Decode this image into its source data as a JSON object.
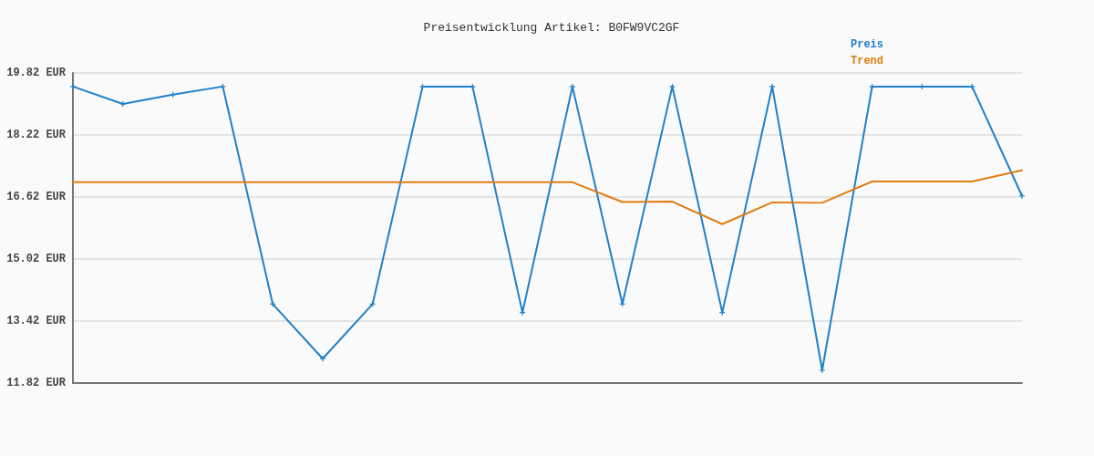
{
  "chart_data": {
    "type": "line",
    "title": "Preisentwicklung Artikel: B0FW9VC2GF",
    "categories": [
      null,
      null,
      null,
      null,
      null,
      null,
      null,
      null,
      null,
      null,
      null,
      null,
      null,
      null,
      null,
      null,
      null,
      null,
      null,
      null
    ],
    "series": [
      {
        "name": "Preis",
        "color": "#1f80c8",
        "marker": "cross",
        "values": [
          19.47,
          19.02,
          19.26,
          19.47,
          13.86,
          12.45,
          13.86,
          19.47,
          19.47,
          13.64,
          19.47,
          13.86,
          19.47,
          13.64,
          19.47,
          12.15,
          19.47,
          19.47,
          19.47,
          16.65
        ]
      },
      {
        "name": "Trend",
        "color": "#e07d10",
        "marker": "none",
        "values": [
          17.0,
          17.0,
          17.0,
          17.0,
          17.0,
          17.0,
          17.0,
          17.0,
          17.0,
          17.0,
          17.0,
          16.49,
          16.5,
          15.92,
          16.48,
          16.47,
          17.02,
          17.02,
          17.02,
          17.31
        ]
      }
    ],
    "ylim": [
      11.82,
      19.82
    ],
    "yticks": [
      {
        "value": 11.82,
        "label": "11.82 EUR"
      },
      {
        "value": 13.42,
        "label": "13.42 EUR"
      },
      {
        "value": 15.02,
        "label": "15.02 EUR"
      },
      {
        "value": 16.62,
        "label": "16.62 EUR"
      },
      {
        "value": 18.22,
        "label": "18.22 EUR"
      },
      {
        "value": 19.82,
        "label": "19.82 EUR"
      }
    ],
    "grid": "y",
    "legend": "top right",
    "tick_labels": "y",
    "line_style": "solid"
  }
}
